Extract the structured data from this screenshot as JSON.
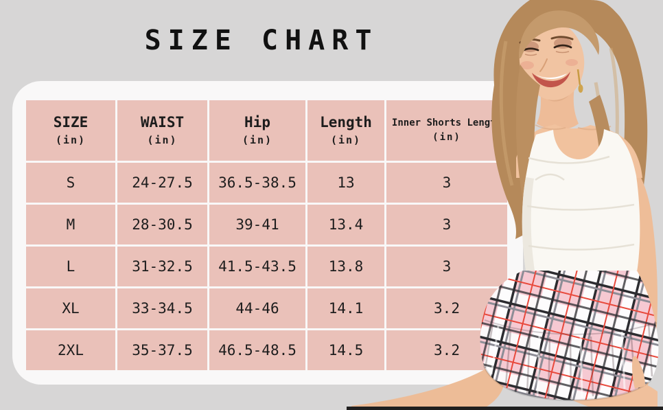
{
  "title": "SIZE CHART",
  "chart_data": {
    "type": "table",
    "title": "SIZE CHART",
    "unit_note": "(in)",
    "columns": [
      {
        "label": "SIZE",
        "unit": "(in)"
      },
      {
        "label": "WAIST",
        "unit": "(in)"
      },
      {
        "label": "Hip",
        "unit": "(in)"
      },
      {
        "label": "Length",
        "unit": "(in)"
      },
      {
        "label": "Inner Shorts Length",
        "unit": "(in)"
      }
    ],
    "rows": [
      [
        "S",
        "24-27.5",
        "36.5-38.5",
        "13",
        "3"
      ],
      [
        "M",
        "28-30.5",
        "39-41",
        "13.4",
        "3"
      ],
      [
        "L",
        "31-32.5",
        "41.5-43.5",
        "13.8",
        "3"
      ],
      [
        "XL",
        "33-34.5",
        "44-46",
        "14.1",
        "3.2"
      ],
      [
        "2XL",
        "35-37.5",
        "46.5-48.5",
        "14.5",
        "3.2"
      ]
    ]
  },
  "photo": {
    "alt": "Model with long light-brown wavy hair wearing a white scoop-neck tank top and a pink plaid pleated mini skirt"
  },
  "colors": {
    "page_bg": "#d7d6d6",
    "card_bg": "#f9f8f8",
    "cell_pink": "#eac1b9",
    "text": "#1d1d1d",
    "top_white": "#faf8f3",
    "skirt_pink": "#f6c9d2",
    "plaid_black": "#2c2c30",
    "plaid_red": "#e8493c",
    "hair_brown": "#b5895a",
    "skin": "#f0c09c"
  }
}
